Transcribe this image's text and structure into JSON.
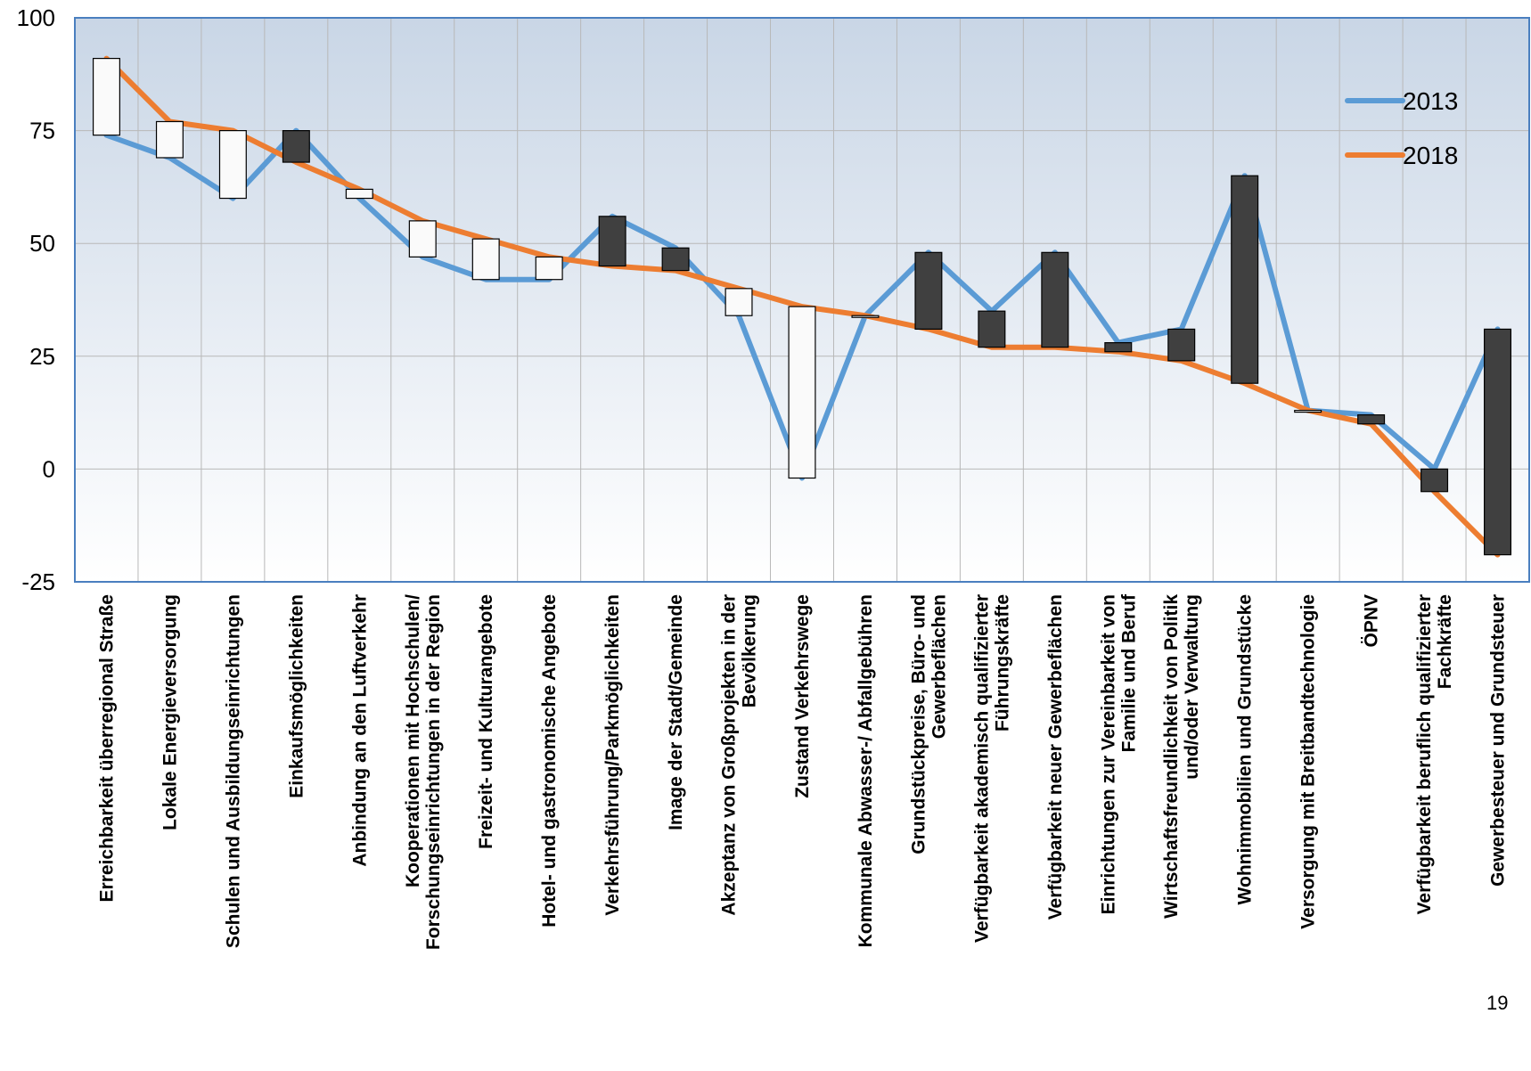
{
  "page_number": "19",
  "colors": {
    "line_2013": "#5B9BD5",
    "line_2018": "#ED7D31",
    "bar_up": "#FAFAFA",
    "bar_down": "#404040",
    "grid": "#B8B8B8",
    "plot_frame": "#4A7FBF",
    "plot_bg_top": "#C9D6E6",
    "plot_bg_bottom": "#FFFFFF"
  },
  "chart_data": {
    "type": "line",
    "ylim": [
      -25,
      100
    ],
    "yticks": [
      "100",
      "75",
      "50",
      "25",
      "0",
      "-25"
    ],
    "ytick_values": [
      100,
      75,
      50,
      25,
      0,
      -25
    ],
    "grid": true,
    "legend_position": "top-right",
    "categories": [
      "Erreichbarkeit überregional Straße",
      "Lokale Energieversorgung",
      "Schulen und Ausbildungseinrichtungen",
      "Einkaufsmöglichkeiten",
      "Anbindung an den Luftverkehr",
      "Kooperationen mit Hochschulen/ Forschungseinrichtungen in der Region",
      "Freizeit- und Kulturangebote",
      "Hotel- und gastronomische Angebote",
      "Verkehrsführung/Parkmöglichkeiten",
      "Image der Stadt/Gemeinde",
      "Akzeptanz von Großprojekten in der Bevölkerung",
      "Zustand Verkehrswege",
      "Kommunale Abwasser-/ Abfallgebühren",
      "Grundstückpreise, Büro- und Gewerbeflächen",
      "Verfügbarkeit akademisch qualifizierter Führungskräfte",
      "Verfügbarkeit neuer Gewerbeflächen",
      "Einrichtungen zur Vereinbarkeit von Familie und Beruf",
      "Wirtschaftsfreundlichkeit von Politik und/oder Verwaltung",
      "Wohnimmobilien und Grundstücke",
      "Versorgung mit Breitbandtechnologie",
      "ÖPNV",
      "Verfügbarkeit beruflich qualifizierter Fachkräfte",
      "Gewerbesteuer und Grundsteuer"
    ],
    "category_lines": [
      [
        "Erreichbarkeit überregional Straße"
      ],
      [
        "Lokale Energieversorgung"
      ],
      [
        "Schulen und Ausbildungseinrichtungen"
      ],
      [
        "Einkaufsmöglichkeiten"
      ],
      [
        "Anbindung an den Luftverkehr"
      ],
      [
        "Kooperationen mit Hochschulen/",
        "Forschungseinrichtungen in der Region"
      ],
      [
        "Freizeit- und Kulturangebote"
      ],
      [
        "Hotel- und gastronomische Angebote"
      ],
      [
        "Verkehrsführung/Parkmöglichkeiten"
      ],
      [
        "Image der Stadt/Gemeinde"
      ],
      [
        "Akzeptanz von Großprojekten in der",
        "Bevölkerung"
      ],
      [
        "Zustand Verkehrswege"
      ],
      [
        "Kommunale Abwasser-/ Abfallgebühren"
      ],
      [
        "Grundstückpreise, Büro- und",
        "Gewerbeflächen"
      ],
      [
        "Verfügbarkeit akademisch qualifizierter",
        "Führungskräfte"
      ],
      [
        "Verfügbarkeit neuer Gewerbeflächen"
      ],
      [
        "Einrichtungen zur Vereinbarkeit von",
        "Familie und Beruf"
      ],
      [
        "Wirtschaftsfreundlichkeit von Politik",
        "und/oder Verwaltung"
      ],
      [
        "Wohnimmobilien und Grundstücke"
      ],
      [
        "Versorgung mit Breitbandtechnologie"
      ],
      [
        "ÖPNV"
      ],
      [
        "Verfügbarkeit beruflich qualifizierter",
        "Fachkräfte"
      ],
      [
        "Gewerbesteuer und Grundsteuer"
      ]
    ],
    "series": [
      {
        "name": "2013",
        "values": [
          74,
          69,
          60,
          75,
          60,
          47,
          42,
          42,
          56,
          49,
          34,
          -2,
          34,
          48,
          35,
          48,
          28,
          31,
          65,
          13,
          12,
          0,
          31
        ]
      },
      {
        "name": "2018",
        "values": [
          91,
          77,
          75,
          68,
          62,
          55,
          51,
          47,
          45,
          44,
          40,
          36,
          34,
          31,
          27,
          27,
          26,
          24,
          19,
          13,
          10,
          -5,
          -19
        ]
      }
    ]
  }
}
